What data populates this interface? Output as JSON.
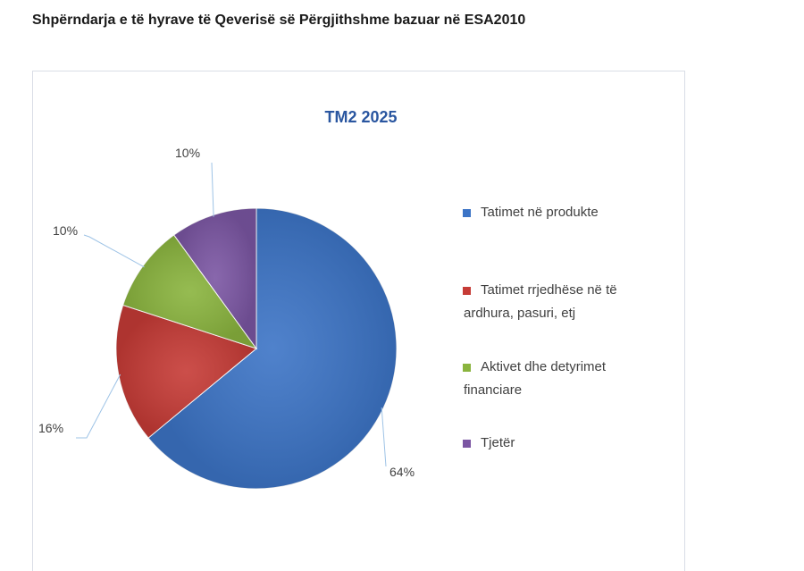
{
  "page": {
    "title": "Shpërndarja e të hyrave të Qeverisë së Përgjithshme bazuar në ESA2010"
  },
  "chart_data": {
    "type": "pie",
    "title": "TM2 2025",
    "categories": [
      "Tatimet në produkte",
      "Tatimet rrjedhëse në të ardhura, pasuri, etj",
      "Aktivet dhe detyrimet financiare",
      "Tjetër"
    ],
    "values": [
      64,
      16,
      10,
      10
    ],
    "value_labels": [
      "64%",
      "16%",
      "10%",
      "10%"
    ],
    "colors": [
      "#3c74c6",
      "#c63b36",
      "#8ab43e",
      "#7b56a3"
    ],
    "legend_position": "right",
    "legend_lines": [
      [
        "Tatimet në produkte"
      ],
      [
        "Tatimet rrjedhëse në të",
        "ardhura, pasuri, etj"
      ],
      [
        "Aktivet dhe detyrimet",
        "financiare"
      ],
      [
        "Tjetër"
      ]
    ]
  }
}
